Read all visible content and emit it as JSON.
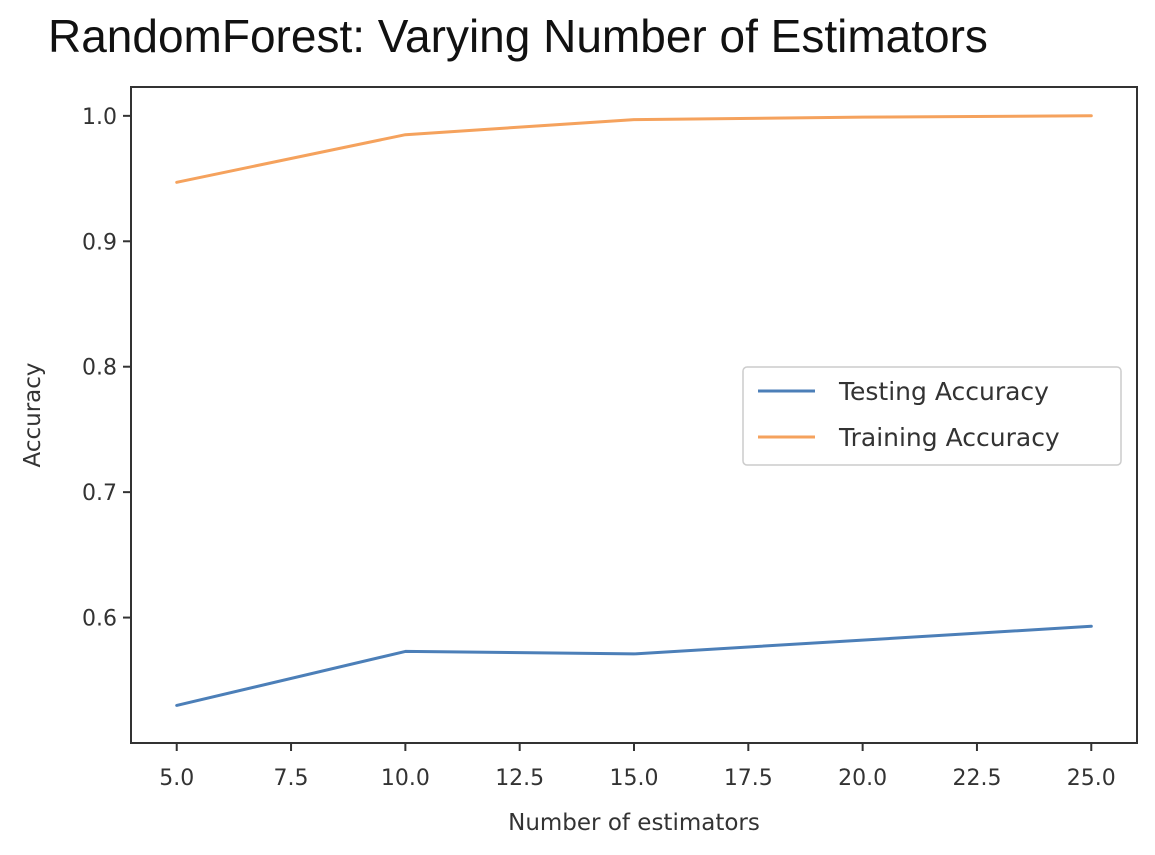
{
  "chart_data": {
    "type": "line",
    "title": "RandomForest: Varying Number of Estimators",
    "xlabel": "Number of estimators",
    "ylabel": "Accuracy",
    "x": [
      5,
      10,
      15,
      20,
      25
    ],
    "series": [
      {
        "name": "Testing Accuracy",
        "color": "#4c7fb8",
        "values": [
          0.53,
          0.573,
          0.571,
          0.582,
          0.593
        ]
      },
      {
        "name": "Training Accuracy",
        "color": "#f5a25d",
        "values": [
          0.947,
          0.985,
          0.997,
          0.999,
          1.0
        ]
      }
    ],
    "xlim": [
      4.0,
      26.0
    ],
    "ylim": [
      0.5,
      1.023
    ],
    "xticks": [
      5.0,
      7.5,
      10.0,
      12.5,
      15.0,
      17.5,
      20.0,
      22.5,
      25.0
    ],
    "xtick_labels": [
      "5.0",
      "7.5",
      "10.0",
      "12.5",
      "15.0",
      "17.5",
      "20.0",
      "22.5",
      "25.0"
    ],
    "yticks": [
      0.6,
      0.7,
      0.8,
      0.9,
      1.0
    ],
    "ytick_labels": [
      "0.6",
      "0.7",
      "0.8",
      "0.9",
      "1.0"
    ],
    "grid": false,
    "legend": "center-right"
  }
}
